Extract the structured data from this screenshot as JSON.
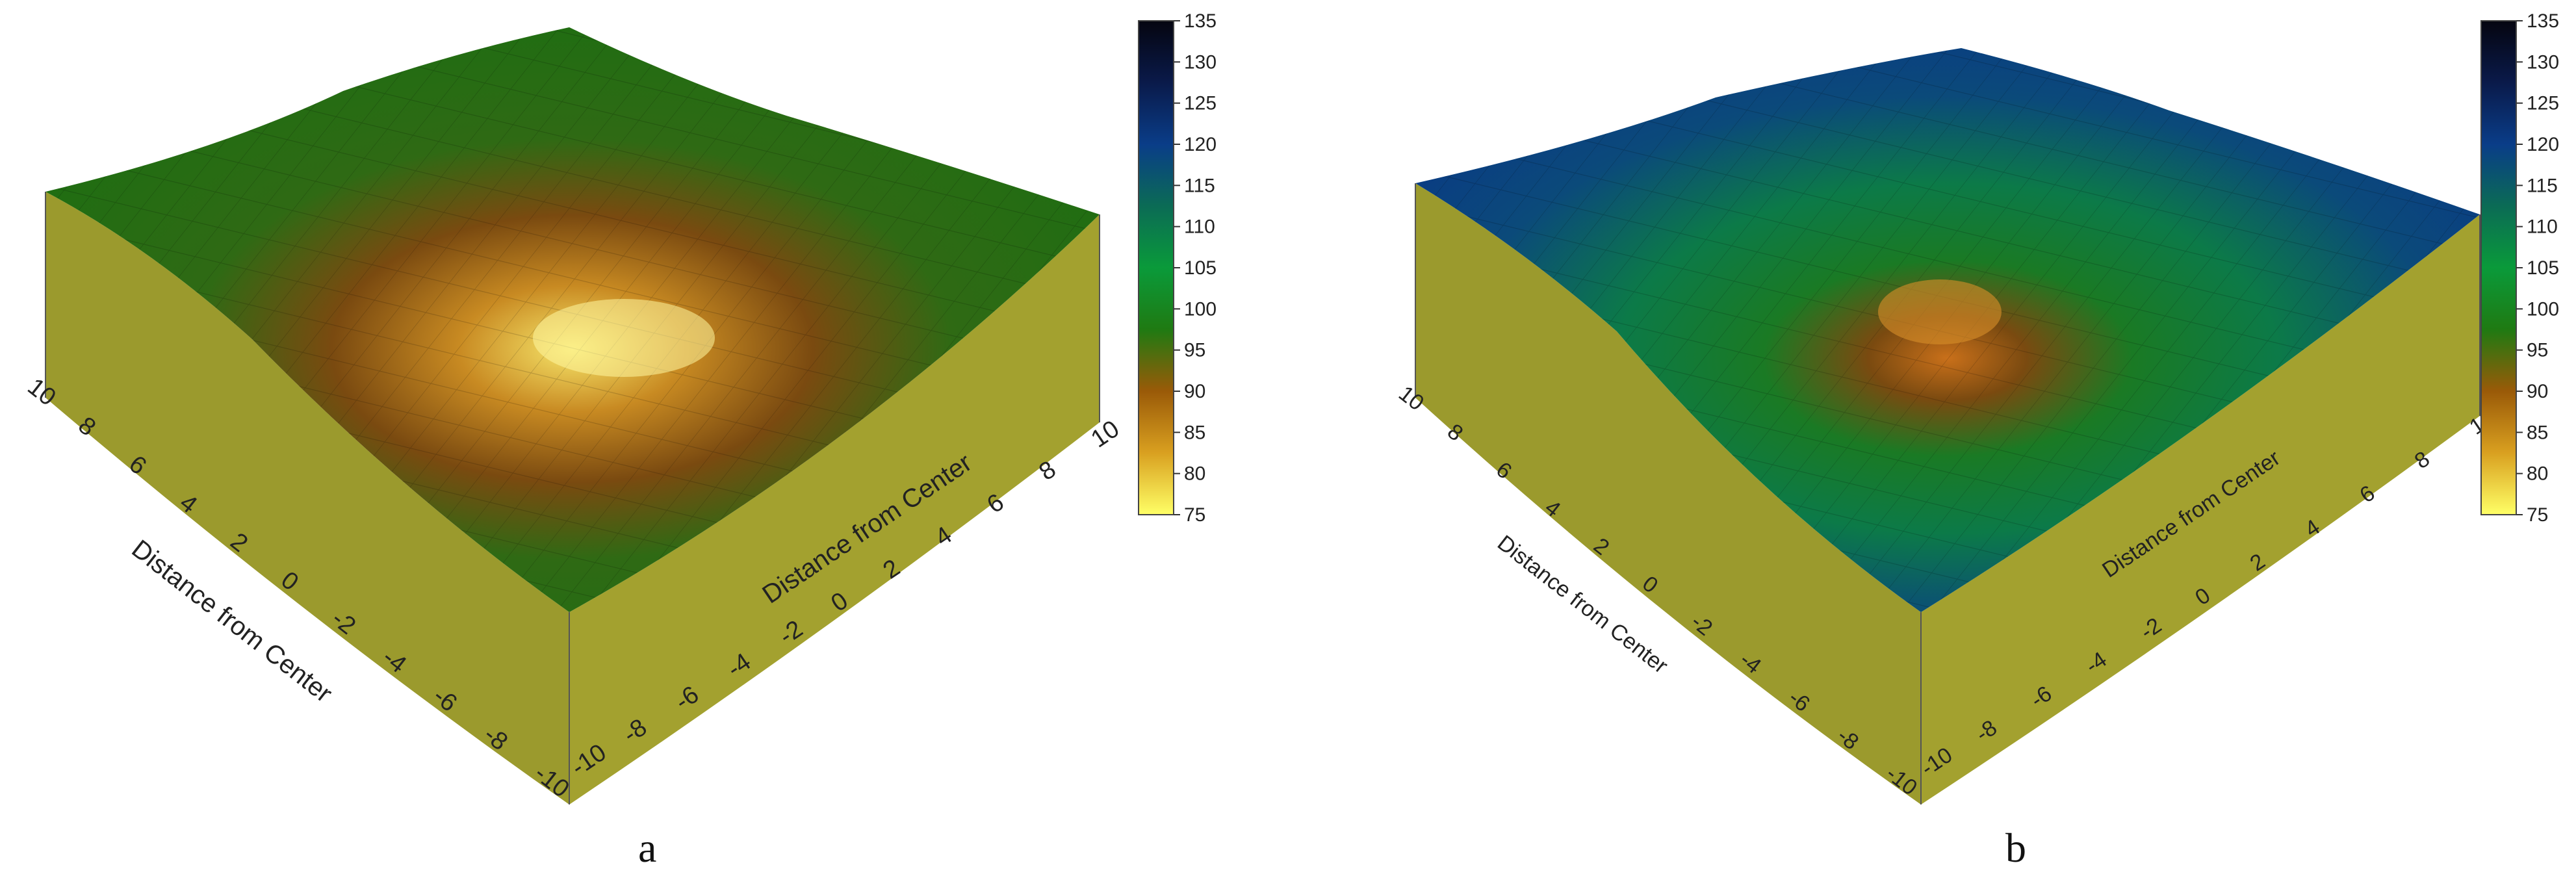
{
  "panels": [
    {
      "label": "a",
      "axis_label_left": "Distance from Center",
      "axis_label_right": "Distance from Center",
      "colorbar_ticks": [
        135,
        130,
        125,
        120,
        115,
        110,
        105,
        100,
        95,
        90,
        85,
        80,
        75
      ]
    },
    {
      "label": "b",
      "axis_label_left": "Distance from Center",
      "axis_label_right": "Distance from Center",
      "colorbar_ticks": [
        135,
        130,
        125,
        120,
        115,
        110,
        105,
        100,
        95,
        90,
        85,
        80,
        75
      ]
    }
  ],
  "chart_data": [
    {
      "type": "surface",
      "x": [
        -10,
        -8,
        -6,
        -4,
        -2,
        0,
        2,
        4,
        6,
        8,
        10
      ],
      "y": [
        -10,
        -8,
        -6,
        -4,
        -2,
        0,
        2,
        4,
        6,
        8,
        10
      ],
      "colorbar_range": [
        75,
        135
      ],
      "edge_value": 99,
      "center_value": 76,
      "colors": [
        "#ffff66",
        "#d9a020",
        "#9a5a08",
        "#1f7a12",
        "#0a9a3a",
        "#0b6b55",
        "#0a3d88",
        "#0a1a4a",
        "#050510"
      ]
    },
    {
      "type": "surface",
      "x": [
        -10,
        -8,
        -6,
        -4,
        -2,
        0,
        2,
        4,
        6,
        8,
        10
      ],
      "y": [
        -10,
        -8,
        -6,
        -4,
        -2,
        0,
        2,
        4,
        6,
        8,
        10
      ],
      "colorbar_range": [
        75,
        135
      ],
      "edge_value": 121,
      "center_value": 89,
      "colors": [
        "#ffff66",
        "#d9a020",
        "#9a5a08",
        "#1f7a12",
        "#0a9a3a",
        "#0b6b55",
        "#0a3d88",
        "#0a1a4a",
        "#050510"
      ]
    }
  ]
}
